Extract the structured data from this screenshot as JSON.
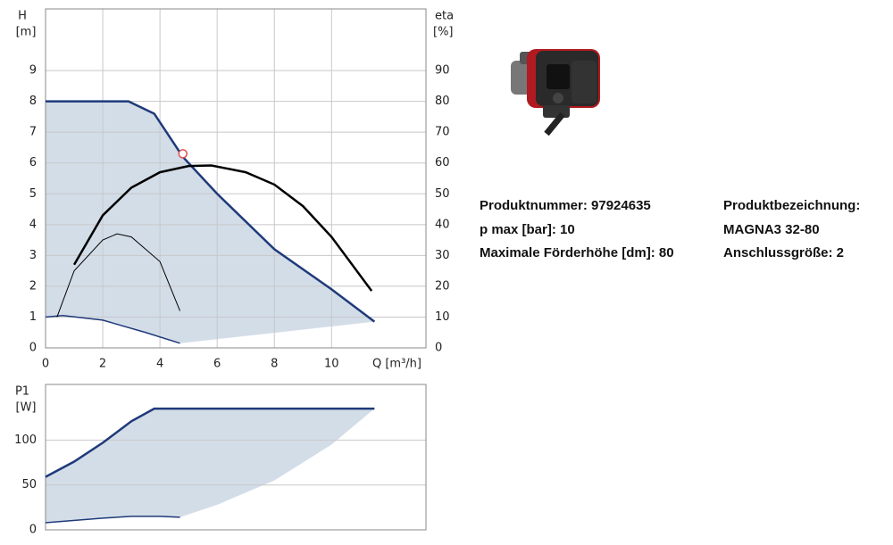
{
  "chart_data": [
    {
      "type": "line",
      "ylabel": "H",
      "yunit": "[m]",
      "y2label": "eta",
      "y2unit": "[%]",
      "xlabel": "Q [m³/h]",
      "xlim": [
        0,
        13.3
      ],
      "xticks": [
        0,
        2,
        4,
        6,
        8,
        10
      ],
      "ylim": [
        0,
        11
      ],
      "yticks": [
        0,
        1,
        2,
        3,
        4,
        5,
        6,
        7,
        8,
        9
      ],
      "y2lim": [
        0,
        110
      ],
      "y2ticks": [
        0,
        10,
        20,
        30,
        40,
        50,
        60,
        70,
        80,
        90
      ],
      "grid": true,
      "range": {
        "color": "#d3dde8",
        "x": [
          4.7,
          11.5
        ],
        "values": [
          0.15,
          0.85
        ]
      },
      "series": [
        {
          "color": "#1f3a7a",
          "width": 2.5,
          "x": [
            0,
            2.9,
            3.8,
            4.8,
            6,
            8,
            10,
            11.5
          ],
          "values": [
            8,
            8,
            7.6,
            6.2,
            5,
            3.2,
            1.9,
            0.85
          ]
        },
        {
          "color": "#1f3a7a",
          "width": 1.5,
          "x": [
            0,
            0.6,
            2,
            3.5,
            4.7
          ],
          "values": [
            1,
            1.05,
            0.9,
            0.5,
            0.15
          ]
        },
        {
          "color": "#000000",
          "width": 2.5,
          "axis": "y2",
          "x": [
            1,
            2,
            3,
            4,
            5,
            5.8,
            7,
            8,
            9,
            10,
            11.4
          ],
          "values": [
            27,
            43,
            52,
            57,
            59,
            59.2,
            57,
            53,
            46,
            36,
            18.5
          ]
        },
        {
          "color": "#000000",
          "width": 1,
          "axis": "y2",
          "x": [
            0.4,
            1,
            2,
            2.5,
            3,
            4,
            4.7
          ],
          "values": [
            10,
            25,
            35,
            37,
            36,
            28,
            12
          ]
        }
      ],
      "operating_point": {
        "x": 4.8,
        "y": 6.3,
        "color": "#e05050"
      }
    },
    {
      "type": "line",
      "ylabel": "P1",
      "yunit": "[W]",
      "xlim": [
        0,
        13.3
      ],
      "ylim": [
        0,
        162
      ],
      "yticks": [
        0,
        50,
        100
      ],
      "grid": true,
      "range": {
        "color": "#d3dde8",
        "x": [
          4.7,
          6,
          8,
          10,
          11.5
        ],
        "values": [
          14,
          28,
          55,
          95,
          135
        ]
      },
      "series": [
        {
          "color": "#1f3a7a",
          "width": 2.5,
          "x": [
            0,
            1,
            2,
            3,
            3.8,
            11.5
          ],
          "values": [
            59,
            76,
            97,
            121,
            135,
            135
          ]
        },
        {
          "color": "#1f3a7a",
          "width": 1.5,
          "x": [
            0,
            2,
            3,
            4,
            4.7
          ],
          "values": [
            8,
            13,
            15,
            15,
            14
          ]
        }
      ]
    }
  ],
  "product": {
    "left": [
      "Produktnummer: 97924635",
      "p max [bar]: 10",
      "Maximale Förderhöhe [dm]: 80"
    ],
    "right": [
      "Produktbezeichnung:",
      "MAGNA3 32-80",
      "Anschlussgröße: 2"
    ]
  }
}
